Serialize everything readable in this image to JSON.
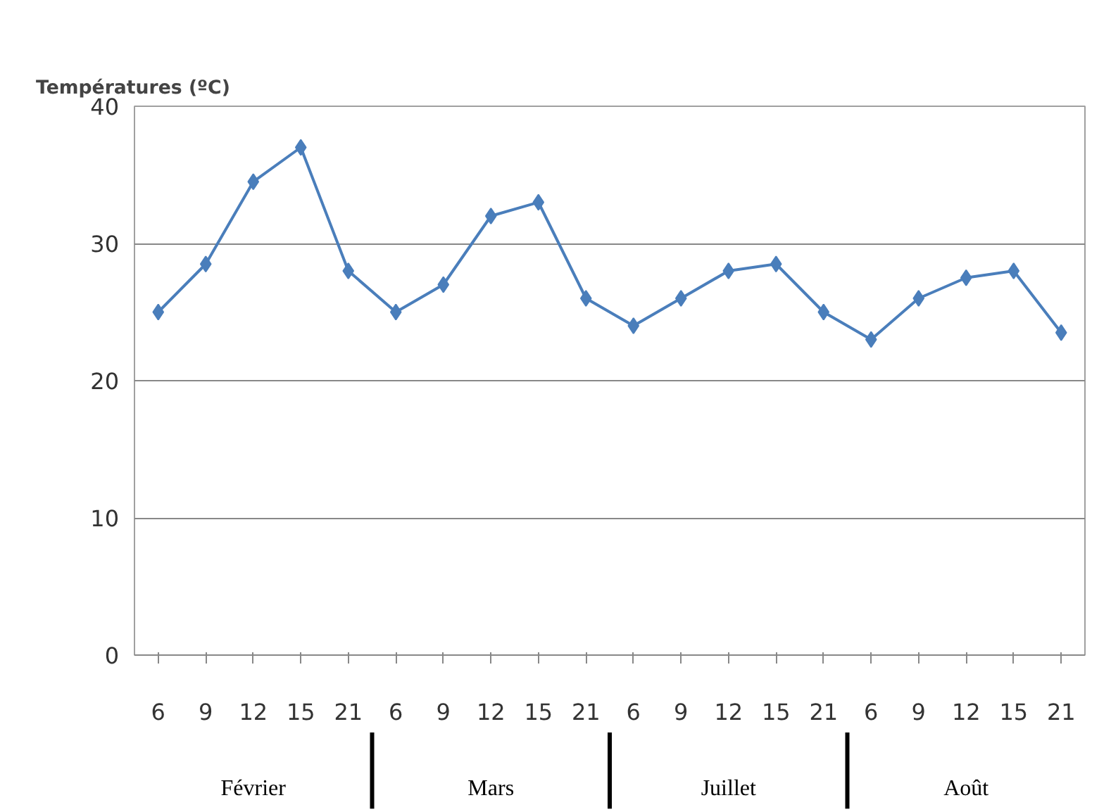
{
  "chart_data": {
    "type": "line",
    "title": "Températures (ºC)",
    "categories": [
      "6",
      "9",
      "12",
      "15",
      "21",
      "6",
      "9",
      "12",
      "15",
      "21",
      "6",
      "9",
      "12",
      "15",
      "21",
      "6",
      "9",
      "12",
      "15",
      "21"
    ],
    "series": [
      {
        "color": "#4a7ebb",
        "values": [
          25,
          28.5,
          34.5,
          37,
          28,
          25,
          27,
          32,
          33,
          26,
          24,
          26,
          28,
          28.5,
          25,
          23,
          26,
          27.5,
          28,
          23.5
        ]
      }
    ],
    "ylim": [
      0,
      40
    ],
    "yticks": [
      0,
      10,
      20,
      30,
      40
    ],
    "grid": "y",
    "marker": "diamond",
    "line_style": "solid",
    "annotations": [
      "Février",
      "Mars",
      "Juillet",
      "Août"
    ]
  }
}
